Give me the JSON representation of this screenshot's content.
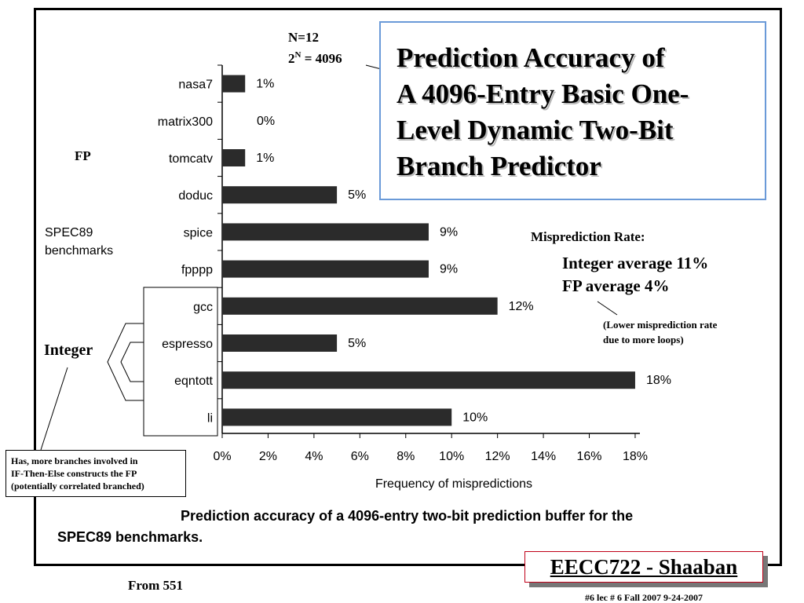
{
  "annotations": {
    "n_line1": "N=12",
    "n_line2_base": "2",
    "n_line2_sup": "N",
    "n_line2_rest": " = 4096",
    "fp_label": "FP",
    "spec_line1": "SPEC89",
    "spec_line2": "benchmarks",
    "integer_label": "Integer",
    "callout_line1": "Has, more branches involved in",
    "callout_line2": "IF-Then-Else constructs the FP",
    "callout_line3": "(potentially correlated branched)",
    "mispred_title": "Misprediction Rate:",
    "int_avg": "Integer average  11%",
    "fp_avg": "FP average  4%",
    "lower_line1": "(Lower misprediction rate",
    "lower_line2": "due to more loops)",
    "from": "From 551"
  },
  "title_box": {
    "lines": [
      "Prediction Accuracy of",
      "A 4096-Entry Basic One-",
      "Level Dynamic Two-Bit",
      "Branch Predictor"
    ]
  },
  "caption": {
    "line1": "Prediction accuracy of a 4096-entry two-bit prediction buffer for the",
    "line2": "SPEC89 benchmarks."
  },
  "footer": {
    "course": "EECC722 - Shaaban",
    "info": "#6   lec # 6   Fall 2007   9-24-2007"
  },
  "chart_data": {
    "type": "bar",
    "orientation": "horizontal",
    "categories": [
      "nasa7",
      "matrix300",
      "tomcatv",
      "doduc",
      "spice",
      "fpppp",
      "gcc",
      "espresso",
      "eqntott",
      "li"
    ],
    "values": [
      1,
      0,
      1,
      5,
      9,
      9,
      12,
      5,
      18,
      10
    ],
    "value_labels": [
      "1%",
      "0%",
      "1%",
      "5%",
      "9%",
      "9%",
      "12%",
      "5%",
      "18%",
      "10%"
    ],
    "x_ticks": [
      "0%",
      "2%",
      "4%",
      "6%",
      "8%",
      "10%",
      "12%",
      "14%",
      "16%",
      "18%"
    ],
    "xlim": [
      0,
      18
    ],
    "xlabel": "Frequency of mispredictions",
    "title": "",
    "grid": false,
    "colors": {
      "bar": "#2b2b2b"
    }
  }
}
